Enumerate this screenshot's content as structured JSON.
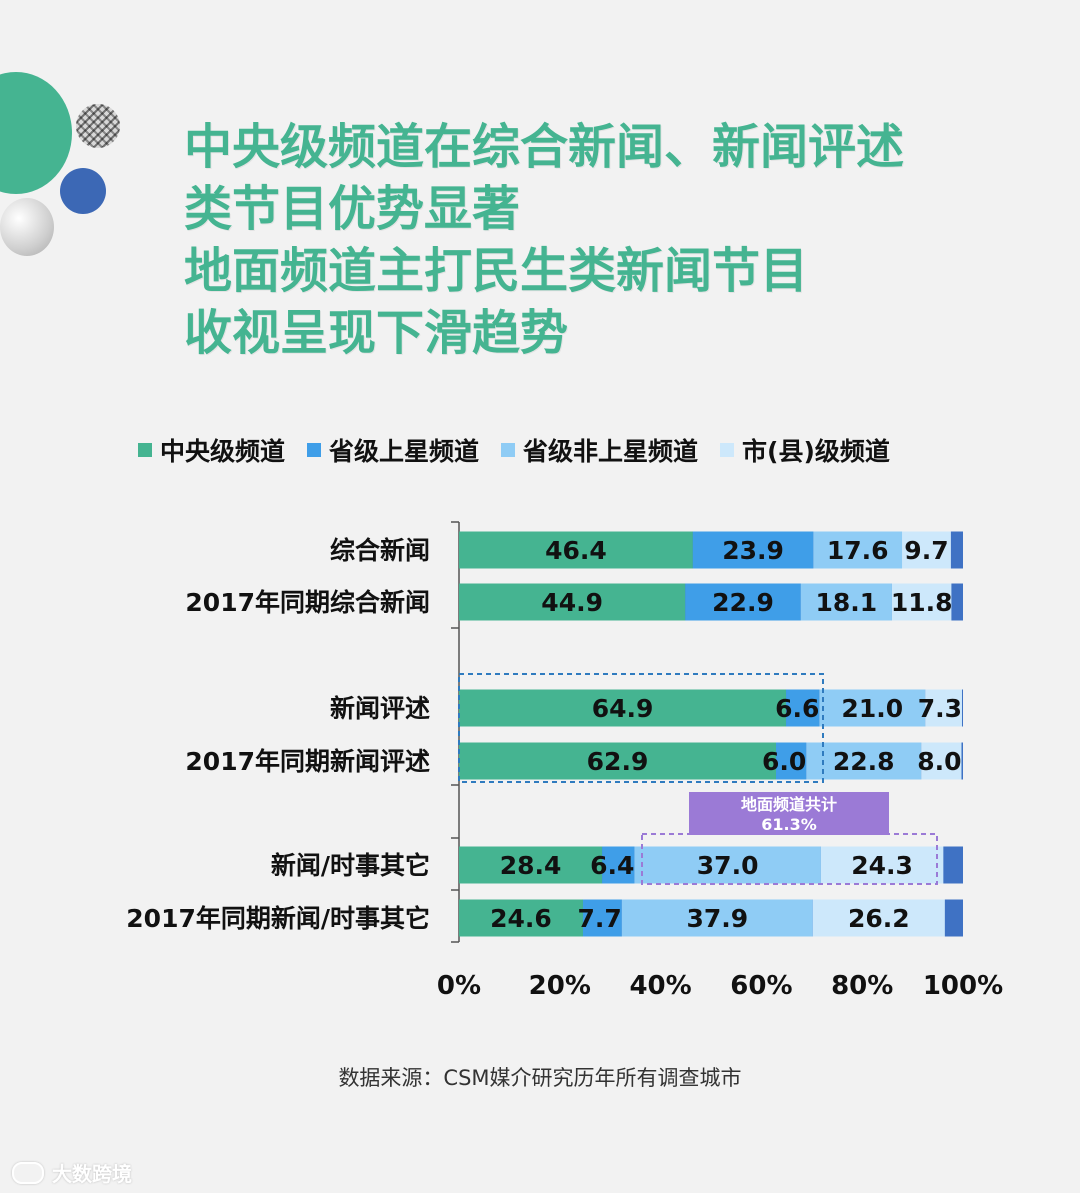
{
  "title_lines": [
    "中央级频道在综合新闻、新闻评述",
    "类节目优势显著",
    "地面频道主打民生类新闻节目",
    "收视呈现下滑趋势"
  ],
  "source": "数据来源：CSM媒介研究历年所有调查城市",
  "watermark": "大数跨境",
  "colors": {
    "central": "#45b491",
    "provincial_satellite": "#3f9ee8",
    "provincial_nonsatellite": "#8fccf5",
    "city_county": "#cde8fb",
    "remainder": "#3f72c4",
    "annotation": "#9b7ad6"
  },
  "annotation": {
    "line1": "地面频道共计",
    "line2": "61.3%"
  },
  "chart_data": {
    "type": "bar",
    "orientation": "horizontal",
    "stacked": true,
    "categories": [
      "综合新闻",
      "2017年同期综合新闻",
      "新闻评述",
      "2017年同期新闻评述",
      "新闻/时事其它",
      "2017年同期新闻/时事其它"
    ],
    "series": [
      {
        "name": "中央级频道",
        "values": [
          46.4,
          44.9,
          64.9,
          62.9,
          28.4,
          24.6
        ]
      },
      {
        "name": "省级上星频道",
        "values": [
          23.9,
          22.9,
          6.6,
          6.0,
          6.4,
          7.7
        ]
      },
      {
        "name": "省级非上星频道",
        "values": [
          17.6,
          18.1,
          21.0,
          22.8,
          37.0,
          37.9
        ]
      },
      {
        "name": "市(县)级频道",
        "values": [
          9.7,
          11.8,
          7.3,
          8.0,
          24.3,
          26.2
        ]
      }
    ],
    "x_ticks": [
      "0%",
      "20%",
      "40%",
      "60%",
      "80%",
      "100%"
    ],
    "xlim": [
      0,
      100
    ],
    "legend": "top",
    "grid": false
  }
}
